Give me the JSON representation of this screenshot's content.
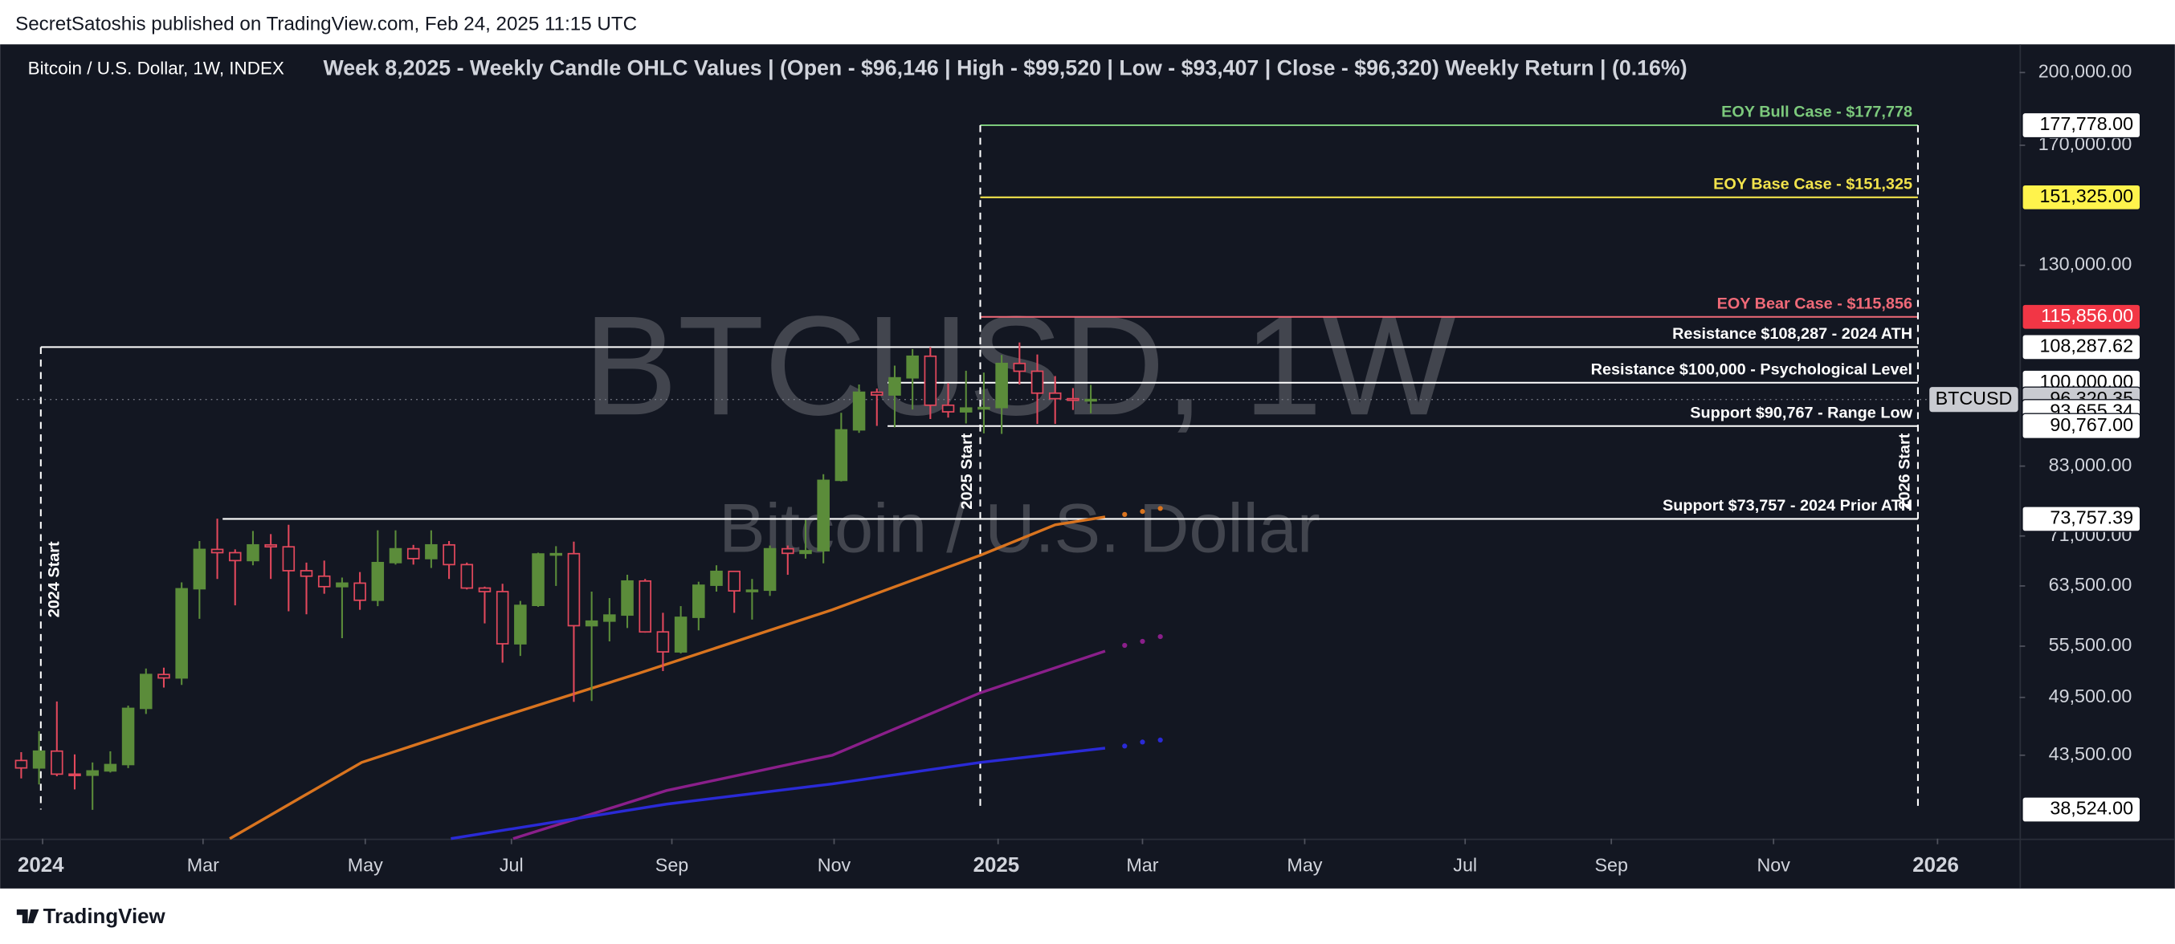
{
  "header": "SecretSatoshis published on TradingView.com, Feb 24, 2025 11:15 UTC",
  "footer": "TradingView",
  "chart_data": {
    "type": "candlestick",
    "title": "Bitcoin / U.S. Dollar, 1W, INDEX",
    "annotation": "Week 8,2025 - Weekly Candle OHLC Values | (Open - $96,146 | High - $99,520 | Low - $93,407 | Close - $96,320) Weekly Return | (0.16%)",
    "watermark": "BTCUSD, 1W",
    "watermark_subtitle": "Bitcoin / U.S. Dollar",
    "log_scale": true,
    "up_color": "#5b8c3a",
    "down_color": "#e2485c",
    "x": [
      -1,
      0,
      1,
      2,
      3,
      4,
      5,
      6,
      7,
      8,
      9,
      10,
      11,
      12,
      13,
      14,
      15,
      16,
      17,
      18,
      19,
      20,
      21,
      22,
      23,
      24,
      25,
      26,
      27,
      28,
      29,
      30,
      31,
      32,
      33,
      34,
      35,
      36,
      37,
      38,
      39,
      40,
      41,
      42,
      43,
      44,
      45,
      46,
      47,
      48,
      49,
      50,
      51,
      52,
      53,
      54,
      55,
      56,
      57,
      58,
      59
    ],
    "open": [
      42990,
      42280,
      43900,
      41700,
      41600,
      42000,
      42600,
      48300,
      52100,
      51700,
      63100,
      68900,
      68400,
      67200,
      69600,
      69300,
      65700,
      64900,
      63400,
      63900,
      61500,
      66900,
      69000,
      67500,
      69600,
      66600,
      63200,
      62700,
      55800,
      60800,
      68200,
      68250,
      58100,
      58700,
      59500,
      64200,
      57300,
      54800,
      59200,
      63600,
      65600,
      62800,
      62900,
      69000,
      68300,
      68700,
      80400,
      90000,
      97900,
      97300,
      101100,
      106100,
      95100,
      93700,
      94500,
      94600,
      104400,
      102600,
      97700,
      96500,
      96146
    ],
    "high": [
      43800,
      45900,
      49050,
      43580,
      42800,
      43880,
      48600,
      52800,
      52900,
      64000,
      70200,
      73800,
      68900,
      71800,
      71300,
      72800,
      66900,
      67200,
      64700,
      65500,
      71900,
      71900,
      69600,
      71900,
      70200,
      66900,
      63400,
      63800,
      61400,
      68400,
      69400,
      70100,
      62700,
      61800,
      65100,
      64500,
      59800,
      60700,
      64100,
      66500,
      65600,
      64500,
      69500,
      69500,
      73600,
      81500,
      93500,
      99600,
      98700,
      103900,
      107800,
      108300,
      99900,
      102700,
      102300,
      106400,
      109400,
      106500,
      101500,
      98800,
      99520
    ],
    "low": [
      41300,
      40750,
      41500,
      40300,
      38500,
      41850,
      42260,
      47700,
      50600,
      50900,
      59000,
      64500,
      60800,
      66500,
      64500,
      60000,
      59600,
      62400,
      56500,
      60200,
      60700,
      66600,
      66600,
      66100,
      64500,
      63000,
      58400,
      53500,
      54300,
      60600,
      63500,
      49000,
      49100,
      56100,
      57800,
      57200,
      52500,
      54600,
      57500,
      62700,
      59800,
      58900,
      62100,
      65100,
      67500,
      66800,
      80200,
      89400,
      90800,
      90500,
      94200,
      92200,
      92500,
      91300,
      89300,
      89200,
      99600,
      91200,
      91200,
      94100,
      93407
    ],
    "close": [
      42280,
      43900,
      41700,
      41600,
      42000,
      42600,
      48300,
      52100,
      51700,
      63100,
      68900,
      68400,
      67200,
      69600,
      69300,
      65700,
      64900,
      63400,
      63900,
      61500,
      66900,
      69000,
      67500,
      69600,
      66600,
      63200,
      62700,
      55800,
      60800,
      68200,
      68250,
      58100,
      58700,
      59500,
      64200,
      57300,
      54800,
      59200,
      63600,
      65600,
      62800,
      62900,
      69000,
      68300,
      68700,
      80400,
      90000,
      97900,
      97300,
      101100,
      106100,
      95100,
      93700,
      94500,
      94600,
      104400,
      102600,
      97700,
      96500,
      96146,
      96320
    ],
    "overlays": [
      {
        "color": "#d9741f",
        "x": [
          10.7,
          18.1,
          25.1,
          33.6,
          44.5,
          52.8,
          57,
          59.8
        ],
        "values": [
          36100,
          42800,
          46900,
          52200,
          60200,
          68000,
          72800,
          74100
        ]
      },
      {
        "color": "#d9741f",
        "dotted": true,
        "x": [
          60.9,
          61.9,
          62.9
        ],
        "values": [
          74500,
          75000,
          75500
        ]
      },
      {
        "color": "#8a1f8a",
        "x": [
          26.6,
          35.2,
          44.5,
          52.8,
          59.8
        ],
        "values": [
          36100,
          40200,
          43500,
          50000,
          54900
        ]
      },
      {
        "color": "#8a1f8a",
        "dotted": true,
        "x": [
          60.9,
          61.9,
          62.9
        ],
        "values": [
          55600,
          56100,
          56700
        ]
      },
      {
        "color": "#2a2ad6",
        "x": [
          23.1,
          35.2,
          44.5,
          52.8,
          59.8
        ],
        "values": [
          36100,
          39000,
          40800,
          42800,
          44200
        ]
      },
      {
        "color": "#2a2ad6",
        "dotted": true,
        "x": [
          60.9,
          61.9,
          62.9
        ],
        "values": [
          44400,
          44800,
          45000
        ]
      }
    ],
    "levels": [
      {
        "label": "EOY Bull Case - $177,778",
        "value": 177778,
        "color": "#7cc97c",
        "from": 52.8
      },
      {
        "label": "EOY Base Case - $151,325",
        "value": 151325,
        "color": "#f2e34c",
        "from": 52.8
      },
      {
        "label": "EOY Bear Case - $115,856",
        "value": 115856,
        "color": "#f06a78",
        "from": 52.8
      },
      {
        "label": "Resistance $108,287 - 2024 ATH",
        "value": 108287,
        "color": "#ffffff",
        "from": 0.1
      },
      {
        "label": "Resistance $100,000 - Psychological Level",
        "value": 100000,
        "color": "#ffffff",
        "from": 47.6
      },
      {
        "label": "Support $90,767 - Range Low",
        "value": 90767,
        "color": "#ffffff",
        "from": 47.6
      },
      {
        "label": "Support $73,757 - 2024 Prior ATH",
        "value": 73757,
        "color": "#ffffff",
        "from": 10.3
      }
    ],
    "markers": [
      {
        "label": "2024 Start",
        "x": 0.1
      },
      {
        "label": "2025 Start",
        "x": 52.8
      },
      {
        "label": "2026 Start",
        "x": 105.4
      }
    ],
    "price_tags": [
      {
        "value": 177778,
        "label": "177,778.00",
        "bg": "#ffffff",
        "fg": "#000000"
      },
      {
        "value": 151325,
        "label": "151,325.00",
        "bg": "#fff34c",
        "fg": "#000000"
      },
      {
        "value": 115856,
        "label": "115,856.00",
        "bg": "#f23645",
        "fg": "#ffffff"
      },
      {
        "value": 108287.62,
        "label": "108,287.62",
        "bg": "#ffffff",
        "fg": "#000000"
      },
      {
        "value": 100000,
        "label": "100,000.00",
        "bg": "#ffffff",
        "fg": "#000000"
      },
      {
        "value": 96320.35,
        "label": "96,320.35",
        "bg": "#c9cbd1",
        "fg": "#000000",
        "symbol": "BTCUSD"
      },
      {
        "value": 93655.34,
        "label": "93,655.34",
        "bg": "#ffffff",
        "fg": "#000000"
      },
      {
        "value": 90767,
        "label": "90,767.00",
        "bg": "#ffffff",
        "fg": "#000000"
      },
      {
        "value": 73757.39,
        "label": "73,757.39",
        "bg": "#ffffff",
        "fg": "#000000"
      },
      {
        "value": 38524,
        "label": "38,524.00",
        "bg": "#ffffff",
        "fg": "#000000"
      }
    ],
    "xlim": [
      -1.25,
      111.1
    ],
    "xticks": [
      {
        "value": 0.2,
        "label": "2024"
      },
      {
        "value": 9.2,
        "label": "Mar"
      },
      {
        "value": 18.3,
        "label": "May"
      },
      {
        "value": 26.5,
        "label": "Jul"
      },
      {
        "value": 35.5,
        "label": "Sep"
      },
      {
        "value": 44.6,
        "label": "Nov"
      },
      {
        "value": 53.8,
        "label": "2025"
      },
      {
        "value": 61.9,
        "label": "Mar"
      },
      {
        "value": 71,
        "label": "May"
      },
      {
        "value": 80,
        "label": "Jul"
      },
      {
        "value": 88.2,
        "label": "Sep"
      },
      {
        "value": 97.3,
        "label": "Nov"
      },
      {
        "value": 106.5,
        "label": "2026"
      }
    ],
    "ylim": [
      36100,
      213000
    ],
    "yticks": [
      {
        "value": 200000,
        "label": "200,000.00"
      },
      {
        "value": 170000,
        "label": "170,000.00"
      },
      {
        "value": 130000,
        "label": "130,000.00"
      },
      {
        "value": 83000,
        "label": "83,000.00"
      },
      {
        "value": 71000,
        "label": "71,000.00"
      },
      {
        "value": 63500,
        "label": "63,500.00"
      },
      {
        "value": 55500,
        "label": "55,500.00"
      },
      {
        "value": 49500,
        "label": "49,500.00"
      },
      {
        "value": 43500,
        "label": "43,500.00"
      }
    ]
  }
}
